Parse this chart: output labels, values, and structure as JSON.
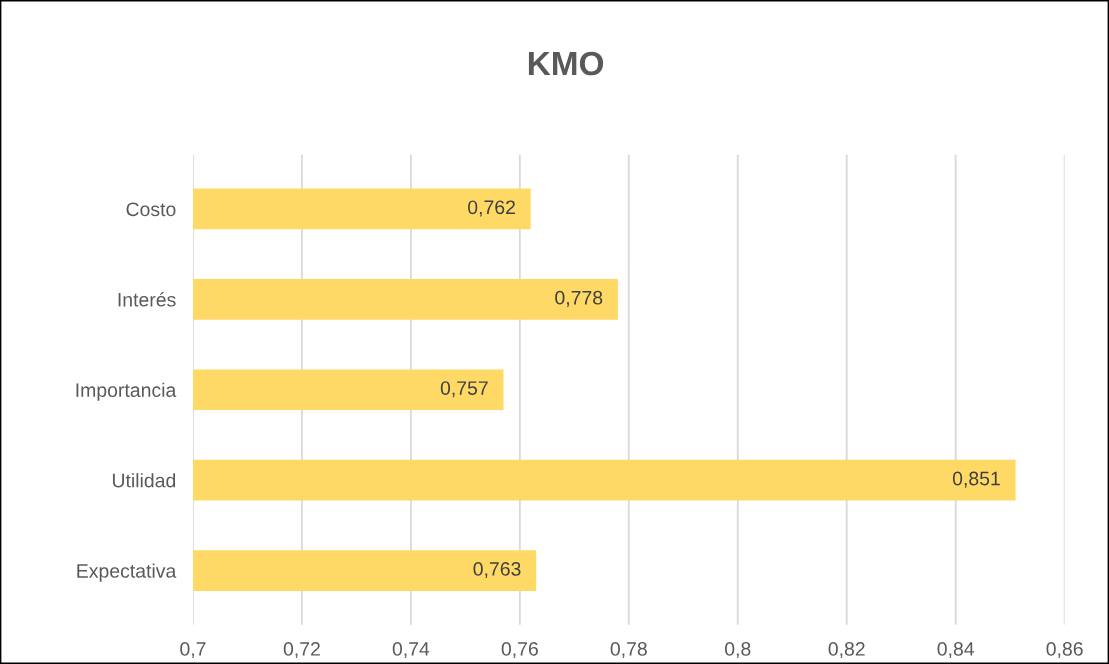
{
  "chart_data": {
    "type": "bar",
    "orientation": "horizontal",
    "title": "KMO",
    "categories": [
      "Costo",
      "Interés",
      "Importancia",
      "Utilidad",
      "Expectativa"
    ],
    "values": [
      0.762,
      0.778,
      0.757,
      0.851,
      0.763
    ],
    "value_labels": [
      "0,762",
      "0,778",
      "0,757",
      "0,851",
      "0,763"
    ],
    "color": "#ffd966",
    "xlim": [
      0.7,
      0.86
    ],
    "xticks": [
      {
        "value": 0.7,
        "label": "0,7"
      },
      {
        "value": 0.72,
        "label": "0,72"
      },
      {
        "value": 0.74,
        "label": "0,74"
      },
      {
        "value": 0.76,
        "label": "0,76"
      },
      {
        "value": 0.78,
        "label": "0,78"
      },
      {
        "value": 0.8,
        "label": "0,8"
      },
      {
        "value": 0.82,
        "label": "0,82"
      },
      {
        "value": 0.84,
        "label": "0,84"
      },
      {
        "value": 0.86,
        "label": "0,86"
      }
    ],
    "grid": "x",
    "legend": false
  }
}
